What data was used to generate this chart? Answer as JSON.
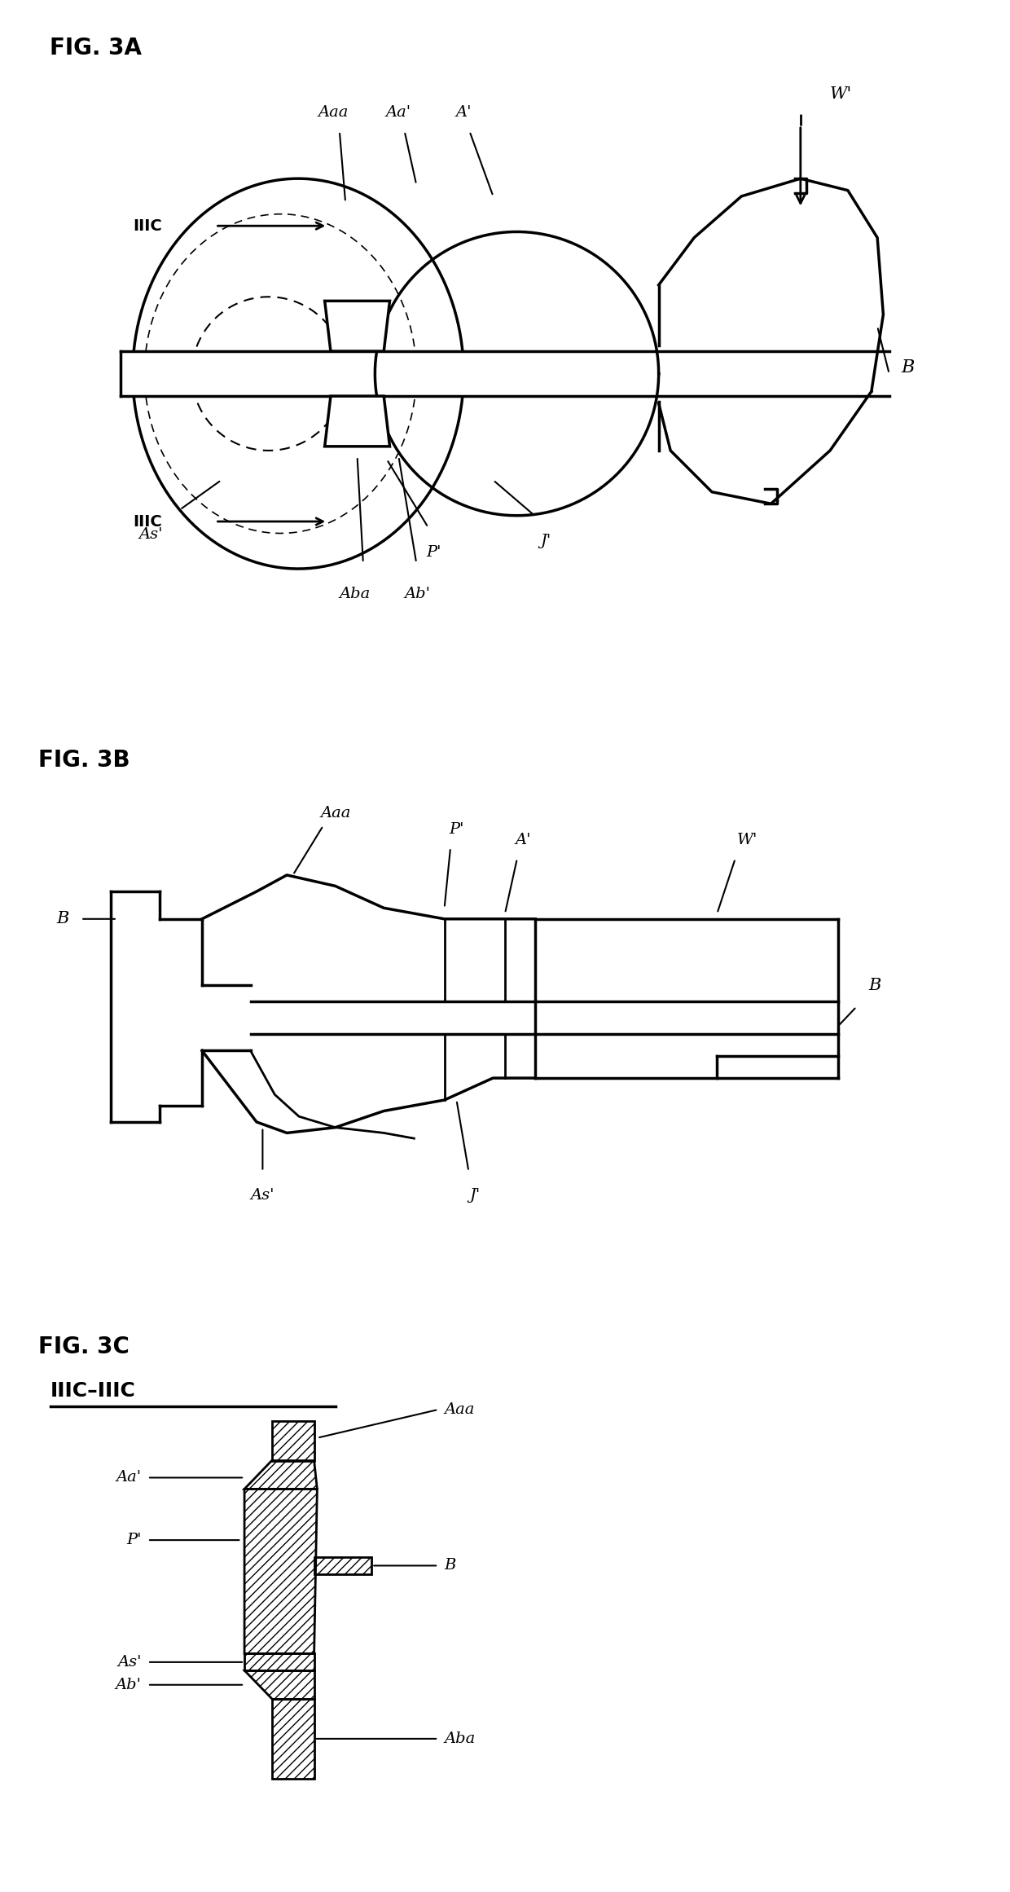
{
  "fig_label_3A": "FIG. 3A",
  "fig_label_3B": "FIG. 3B",
  "fig_label_3C": "FIG. 3C",
  "bg_color": "#ffffff",
  "line_color": "#000000",
  "lw": 2.0,
  "hlw": 2.5,
  "fs": 14,
  "fsl": 20
}
